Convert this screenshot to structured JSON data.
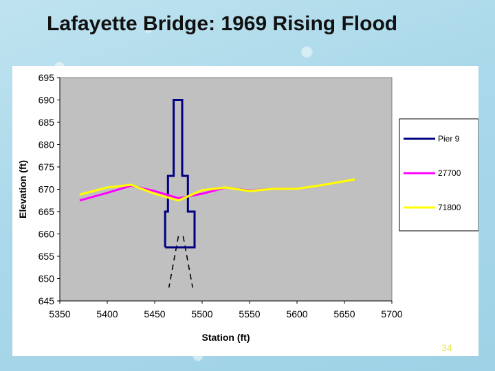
{
  "slide": {
    "title": "Lafayette Bridge: 1969 Rising Flood",
    "page_number": "34"
  },
  "chart_data": {
    "type": "line",
    "title": "",
    "xlabel": "Station (ft)",
    "ylabel": "Elevation (ft)",
    "xlim": [
      5350,
      5700
    ],
    "ylim": [
      645,
      695
    ],
    "xticks": [
      5350,
      5400,
      5450,
      5500,
      5550,
      5600,
      5650,
      5700
    ],
    "yticks": [
      645,
      650,
      655,
      660,
      665,
      670,
      675,
      680,
      685,
      690,
      695
    ],
    "grid": false,
    "plot_background": "#c0c0c0",
    "legend_position": "right",
    "series": [
      {
        "name": "Pier 9",
        "color": "#000080",
        "x": [
          5461,
          5461,
          5464,
          5464,
          5470,
          5470,
          5479,
          5479,
          5485,
          5485,
          5492,
          5492,
          5461
        ],
        "y": [
          657,
          665,
          665,
          673,
          673,
          690,
          690,
          673,
          673,
          665,
          665,
          657,
          657
        ]
      },
      {
        "name": "27700",
        "color": "#ff00ff",
        "x": [
          5371,
          5400,
          5425,
          5450,
          5475,
          5500,
          5525,
          5550,
          5575,
          5600
        ],
        "y": [
          667.5,
          669.2,
          670.8,
          669.6,
          668,
          669,
          670.4,
          669.7,
          670.1,
          670.1
        ]
      },
      {
        "name": "71800",
        "color": "#ffff00",
        "x": [
          5371,
          5400,
          5425,
          5450,
          5475,
          5500,
          5525,
          5550,
          5575,
          5600,
          5625,
          5661
        ],
        "y": [
          668.8,
          670.4,
          671,
          669,
          667.5,
          669.8,
          670.4,
          669.6,
          670.1,
          670.1,
          670.9,
          672.2
        ]
      }
    ],
    "pile_lines": [
      {
        "x": [
          5475,
          5465
        ],
        "y": [
          659.5,
          648
        ]
      },
      {
        "x": [
          5480,
          5490
        ],
        "y": [
          659.5,
          648
        ]
      }
    ]
  },
  "colors": {
    "axis": "#000000",
    "tick_text": "#000000"
  }
}
